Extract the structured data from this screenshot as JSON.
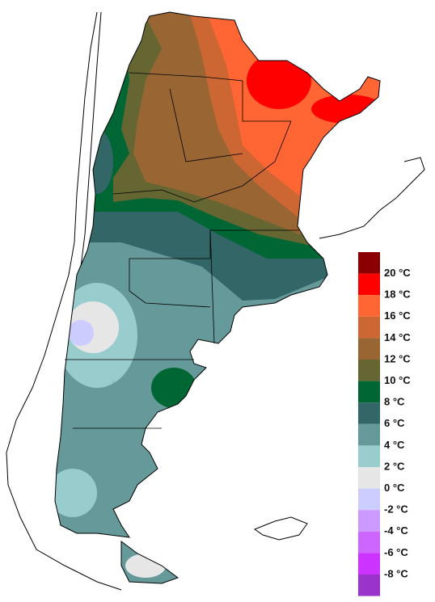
{
  "legend": {
    "labels": [
      "20 °C",
      "18 °C",
      "16 °C",
      "14 °C",
      "12 °C",
      "10 °C",
      "8 °C",
      "6 °C",
      "4 °C",
      "2 °C",
      "0 °C",
      "-2 °C",
      "-4 °C",
      "-6 °C",
      "-8 °C"
    ],
    "colors": [
      "#8b0000",
      "#ff0000",
      "#ff6633",
      "#cc6633",
      "#996633",
      "#666633",
      "#006633",
      "#336666",
      "#669999",
      "#99cccc",
      "#e6e6e6",
      "#ccccff",
      "#cc99ff",
      "#cc66ff",
      "#cc33ff",
      "#9933cc"
    ]
  }
}
